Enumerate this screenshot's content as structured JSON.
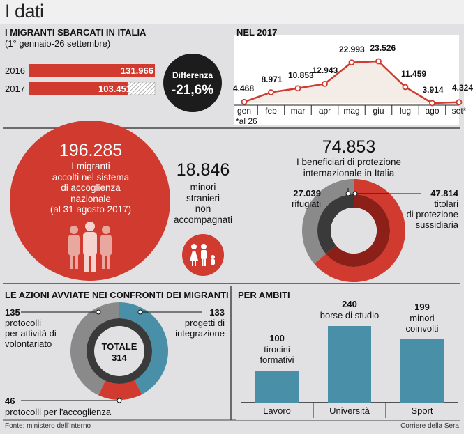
{
  "header": {
    "title": "I dati"
  },
  "sbarcati": {
    "title": "I MIGRANTI SBARCATI IN ITALIA",
    "subtitle": "(1° gennaio-26 settembre)",
    "diff_label": "Differenza",
    "diff_value": "-21,6%",
    "bars": [
      {
        "year": "2016",
        "value": 131966,
        "label": "131.966"
      },
      {
        "year": "2017",
        "value": 103451,
        "label": "103.451"
      }
    ]
  },
  "mensile": {
    "title": "NEL 2017",
    "footnote": "*al 26",
    "months": [
      "gen",
      "feb",
      "mar",
      "apr",
      "mag",
      "giu",
      "lug",
      "ago",
      "set*"
    ],
    "values": [
      4468,
      8971,
      10853,
      12943,
      22993,
      23526,
      11459,
      3914,
      4324
    ],
    "labels": [
      "4.468",
      "8.971",
      "10.853",
      "12.943",
      "22.993",
      "23.526",
      "11.459",
      "3.914",
      "4.324"
    ]
  },
  "accolti": {
    "number": "196.285",
    "lines": [
      "I migranti",
      "accolti nel sistema",
      "di accoglienza",
      "nazionale",
      "(al 31 agosto 2017)"
    ]
  },
  "minori": {
    "number": "18.846",
    "lines": [
      "minori",
      "stranieri",
      "non",
      "accompagnati"
    ]
  },
  "protezione": {
    "number": "74.853",
    "lines": [
      "I beneficiari di protezione",
      "internazionale in Italia"
    ],
    "rifugiati_value": "27.039",
    "rifugiati_label": "rifugiati",
    "sussidiaria_value": "47.814",
    "sussidiaria_lines": [
      "titolari",
      "di protezione",
      "sussidiaria"
    ]
  },
  "azioni": {
    "title": "LE AZIONI AVVIATE NEI CONFRONTI DEI MIGRANTI",
    "total_label": "TOTALE",
    "total_value": "314",
    "volontariato_value": "135",
    "volontariato_lines": [
      "protocolli",
      "per attività di",
      "volontariato"
    ],
    "integrazione_value": "133",
    "integrazione_lines": [
      "progetti di",
      "integrazione"
    ],
    "accoglienza_value": "46",
    "accoglienza_label": "protocolli per l'accoglienza"
  },
  "ambiti": {
    "title": "PER AMBITI",
    "items": [
      {
        "category": "Lavoro",
        "value": 100,
        "value_label": "100",
        "lines": [
          "tirocini",
          "formativi"
        ]
      },
      {
        "category": "Università",
        "value": 240,
        "value_label": "240",
        "lines": [
          "borse di studio"
        ]
      },
      {
        "category": "Sport",
        "value": 199,
        "value_label": "199",
        "lines": [
          "minori",
          "coinvolti"
        ]
      }
    ]
  },
  "footer": {
    "source": "Fonte: ministero dell'Interno",
    "credit": "Corriere della Sera"
  },
  "colors": {
    "red": "#d03a2f",
    "dark": "#3a3a3a",
    "grey": "#8a8a8a",
    "teal": "#4a8fa8",
    "bg": "#e1e1e3"
  },
  "chart_data": [
    {
      "type": "bar",
      "title": "I MIGRANTI SBARCATI IN ITALIA",
      "subtitle": "(1° gennaio-26 settembre)",
      "categories": [
        "2016",
        "2017"
      ],
      "values": [
        131966,
        103451
      ]
    },
    {
      "type": "line",
      "title": "NEL 2017",
      "x": [
        "gen",
        "feb",
        "mar",
        "apr",
        "mag",
        "giu",
        "lug",
        "ago",
        "set*"
      ],
      "values": [
        4468,
        8971,
        10853,
        12943,
        22993,
        23526,
        11459,
        3914,
        4324
      ]
    },
    {
      "type": "pie",
      "title": "I beneficiari di protezione internazionale in Italia",
      "categories": [
        "rifugiati",
        "titolari di protezione sussidiaria"
      ],
      "values": [
        27039,
        47814
      ]
    },
    {
      "type": "pie",
      "title": "LE AZIONI AVVIATE NEI CONFRONTI DEI MIGRANTI",
      "categories": [
        "protocolli per attività di volontariato",
        "progetti di integrazione",
        "protocolli per l'accoglienza"
      ],
      "values": [
        135,
        133,
        46
      ]
    },
    {
      "type": "bar",
      "title": "PER AMBITI",
      "categories": [
        "Lavoro",
        "Università",
        "Sport"
      ],
      "values": [
        100,
        240,
        199
      ]
    }
  ]
}
